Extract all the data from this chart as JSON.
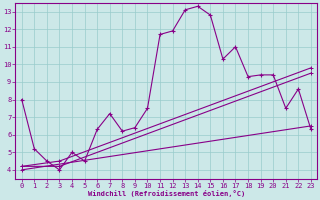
{
  "xlabel": "Windchill (Refroidissement éolien,°C)",
  "bg_color": "#cce8e8",
  "line_color": "#880088",
  "grid_color": "#99cccc",
  "xlim": [
    -0.5,
    23.5
  ],
  "ylim": [
    3.5,
    13.5
  ],
  "xticks": [
    0,
    1,
    2,
    3,
    4,
    5,
    6,
    7,
    8,
    9,
    10,
    11,
    12,
    13,
    14,
    15,
    16,
    17,
    18,
    19,
    20,
    21,
    22,
    23
  ],
  "yticks": [
    4,
    5,
    6,
    7,
    8,
    9,
    10,
    11,
    12,
    13
  ],
  "series1_x": [
    0,
    1,
    2,
    3,
    4,
    5,
    6,
    7,
    8,
    9,
    10,
    11,
    12,
    13,
    14,
    15,
    16,
    17,
    18,
    19,
    20,
    21,
    22,
    23
  ],
  "series1_y": [
    8.0,
    5.2,
    4.5,
    4.0,
    5.0,
    4.5,
    6.3,
    7.2,
    6.2,
    6.4,
    7.5,
    11.7,
    11.9,
    13.1,
    13.3,
    12.8,
    10.3,
    11.0,
    9.3,
    9.4,
    9.4,
    7.5,
    8.6,
    6.3
  ],
  "series2_x": [
    0,
    3,
    23
  ],
  "series2_y": [
    4.2,
    4.2,
    9.5
  ],
  "series3_x": [
    0,
    3,
    23
  ],
  "series3_y": [
    4.2,
    4.5,
    9.8
  ],
  "series4_x": [
    0,
    23
  ],
  "series4_y": [
    4.0,
    6.5
  ]
}
